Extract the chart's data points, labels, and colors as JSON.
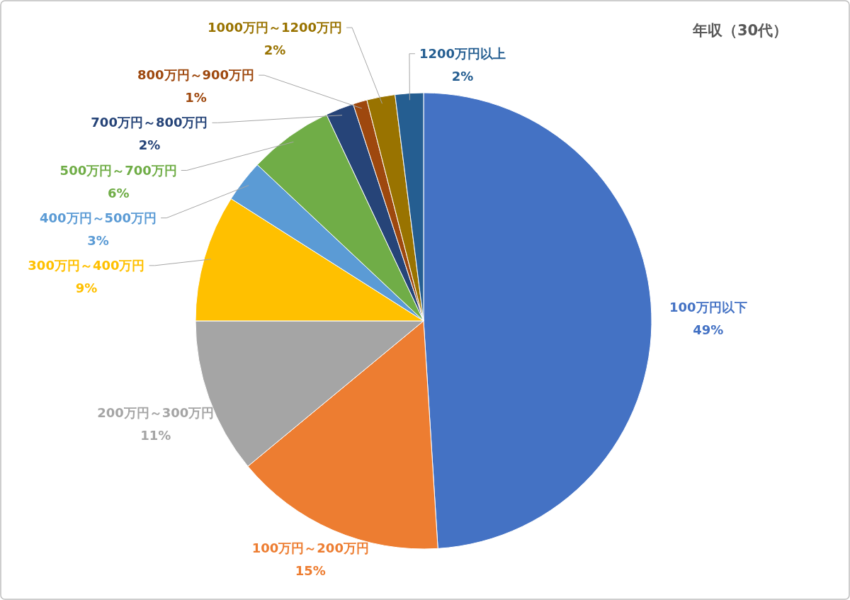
{
  "chart_data": {
    "type": "pie",
    "title": "年収（30代）",
    "categories": [
      "100万円以下",
      "100万円～200万円",
      "200万円～300万円",
      "300万円～400万円",
      "400万円～500万円",
      "500万円～700万円",
      "700万円～800万円",
      "800万円～900万円",
      "1000万円～1200万円",
      "1200万円以上"
    ],
    "values": [
      49,
      15,
      11,
      9,
      3,
      6,
      2,
      1,
      2,
      2
    ],
    "colors": [
      "#4472c4",
      "#ed7d31",
      "#a5a5a5",
      "#ffc000",
      "#5b9bd5",
      "#70ad47",
      "#264478",
      "#9e480e",
      "#997300",
      "#255e91"
    ],
    "value_labels": [
      "49%",
      "15%",
      "11%",
      "9%",
      "3%",
      "6%",
      "2%",
      "1%",
      "2%",
      "2%"
    ]
  }
}
